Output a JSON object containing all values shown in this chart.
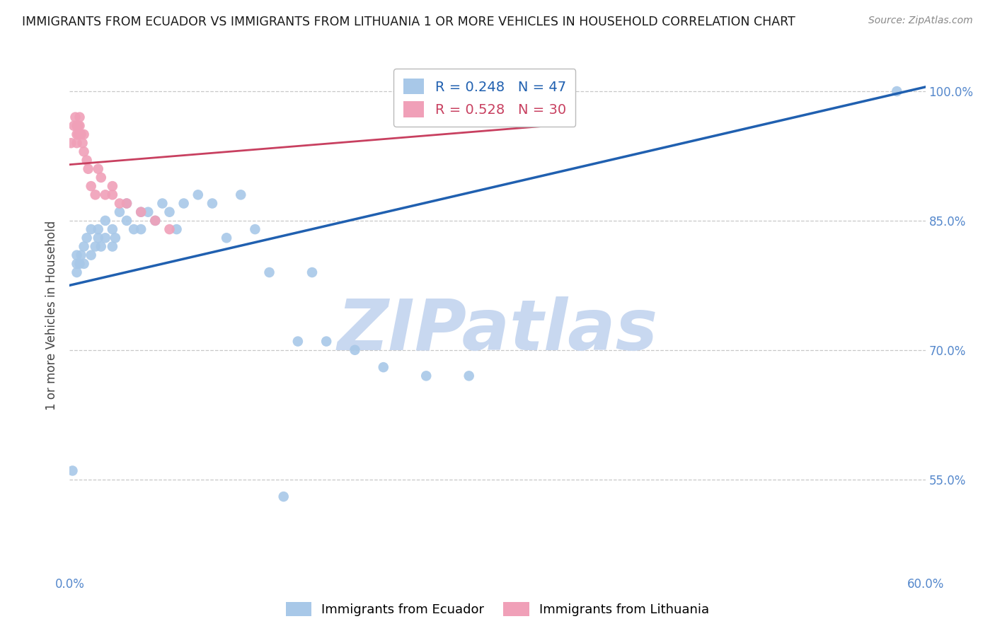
{
  "title": "IMMIGRANTS FROM ECUADOR VS IMMIGRANTS FROM LITHUANIA 1 OR MORE VEHICLES IN HOUSEHOLD CORRELATION CHART",
  "source": "Source: ZipAtlas.com",
  "ylabel": "1 or more Vehicles in Household",
  "legend_ecuador": "Immigrants from Ecuador",
  "legend_lithuania": "Immigrants from Lithuania",
  "R_ecuador": 0.248,
  "N_ecuador": 47,
  "R_lithuania": 0.528,
  "N_lithuania": 30,
  "color_ecuador": "#a8c8e8",
  "color_lithuania": "#f0a0b8",
  "line_color_ecuador": "#2060b0",
  "line_color_lithuania": "#c84060",
  "xlim": [
    0.0,
    0.6
  ],
  "ylim": [
    0.44,
    1.04
  ],
  "yticks": [
    0.55,
    0.7,
    0.85,
    1.0
  ],
  "ytick_labels": [
    "55.0%",
    "70.0%",
    "85.0%",
    "100.0%"
  ],
  "xticks": [
    0.0,
    0.1,
    0.2,
    0.3,
    0.4,
    0.5,
    0.6
  ],
  "watermark": "ZIPatlas",
  "ecuador_x": [
    0.002,
    0.005,
    0.005,
    0.007,
    0.008,
    0.01,
    0.01,
    0.012,
    0.015,
    0.015,
    0.018,
    0.02,
    0.02,
    0.022,
    0.025,
    0.025,
    0.03,
    0.03,
    0.032,
    0.035,
    0.04,
    0.04,
    0.045,
    0.05,
    0.05,
    0.055,
    0.06,
    0.065,
    0.07,
    0.075,
    0.08,
    0.09,
    0.1,
    0.11,
    0.12,
    0.13,
    0.14,
    0.15,
    0.16,
    0.18,
    0.2,
    0.22,
    0.25,
    0.28,
    0.17,
    0.58,
    0.005
  ],
  "ecuador_y": [
    0.56,
    0.8,
    0.79,
    0.8,
    0.81,
    0.8,
    0.82,
    0.83,
    0.81,
    0.84,
    0.82,
    0.83,
    0.84,
    0.82,
    0.83,
    0.85,
    0.82,
    0.84,
    0.83,
    0.86,
    0.85,
    0.87,
    0.84,
    0.86,
    0.84,
    0.86,
    0.85,
    0.87,
    0.86,
    0.84,
    0.87,
    0.88,
    0.87,
    0.83,
    0.88,
    0.84,
    0.79,
    0.53,
    0.71,
    0.71,
    0.7,
    0.68,
    0.67,
    0.67,
    0.79,
    1.0,
    0.81
  ],
  "lithuania_x": [
    0.001,
    0.003,
    0.004,
    0.005,
    0.005,
    0.005,
    0.006,
    0.006,
    0.007,
    0.007,
    0.008,
    0.009,
    0.01,
    0.01,
    0.012,
    0.013,
    0.015,
    0.018,
    0.02,
    0.022,
    0.025,
    0.03,
    0.03,
    0.035,
    0.04,
    0.05,
    0.06,
    0.07,
    0.28,
    0.35
  ],
  "lithuania_y": [
    0.94,
    0.96,
    0.97,
    0.96,
    0.95,
    0.94,
    0.96,
    0.95,
    0.97,
    0.96,
    0.95,
    0.94,
    0.95,
    0.93,
    0.92,
    0.91,
    0.89,
    0.88,
    0.91,
    0.9,
    0.88,
    0.89,
    0.88,
    0.87,
    0.87,
    0.86,
    0.85,
    0.84,
    0.97,
    0.97
  ],
  "blue_line_x": [
    0.0,
    0.6
  ],
  "blue_line_y": [
    0.775,
    1.005
  ],
  "pink_line_x": [
    0.0,
    0.35
  ],
  "pink_line_y": [
    0.915,
    0.962
  ],
  "background_color": "#ffffff",
  "grid_color": "#c8c8c8",
  "title_color": "#1a1a1a",
  "ylabel_color": "#444444",
  "right_axis_color": "#5588cc",
  "watermark_color": "#c8d8f0",
  "title_fontsize": 12.5,
  "source_fontsize": 10,
  "tick_fontsize": 12,
  "ylabel_fontsize": 12,
  "legend_fontsize": 14,
  "scatter_size": 110
}
